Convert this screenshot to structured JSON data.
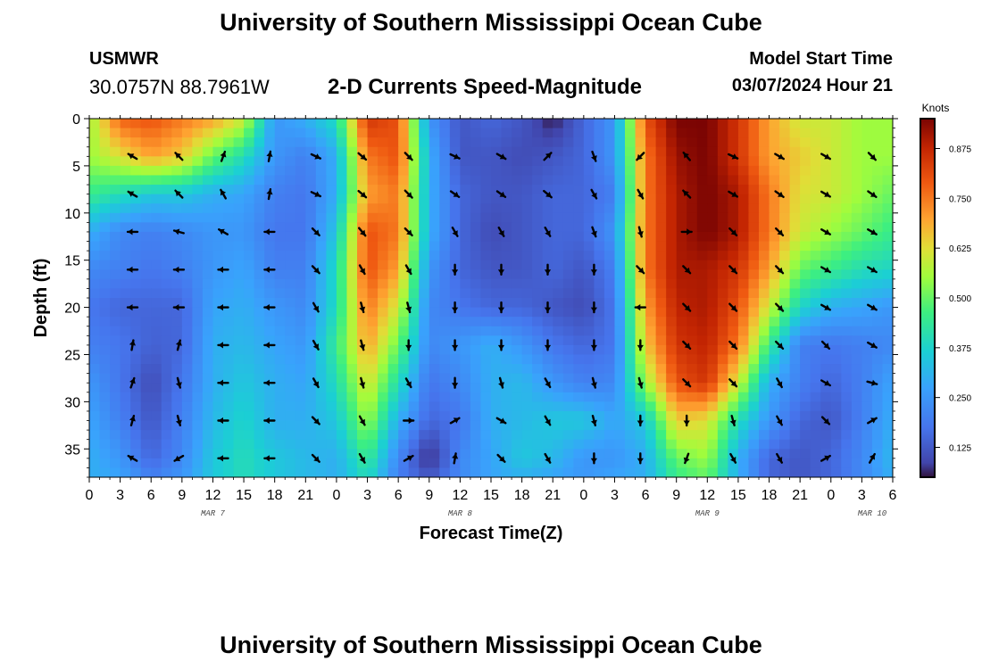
{
  "header": {
    "title": "University of Southern Mississippi Ocean Cube",
    "station_id": "USMWR",
    "coordinates": "30.0757N  88.7961W",
    "subtitle": "2-D Currents Speed-Magnitude",
    "model_start_label": "Model Start Time",
    "model_start_value": "03/07/2024 Hour 21"
  },
  "footer": {
    "title": "University of Southern Mississippi Ocean Cube"
  },
  "chart_data": {
    "type": "heatmap",
    "title": "2-D Currents Speed-Magnitude",
    "xlabel": "Forecast Time(Z)",
    "ylabel": "Depth (ft)",
    "x_hours_range": [
      0,
      78
    ],
    "x_tick_step_hours": 3,
    "x_tick_labels": [
      "0",
      "3",
      "6",
      "9",
      "12",
      "15",
      "18",
      "21",
      "0",
      "3",
      "6",
      "9",
      "12",
      "15",
      "18",
      "21",
      "0",
      "3",
      "6",
      "9",
      "12",
      "15",
      "18",
      "21",
      "0",
      "3",
      "6"
    ],
    "day_labels": [
      {
        "label": "MAR 7",
        "hour": 12
      },
      {
        "label": "MAR 8",
        "hour": 36
      },
      {
        "label": "MAR 9",
        "hour": 60
      },
      {
        "label": "MAR 10",
        "hour": 76
      }
    ],
    "ylim": [
      0,
      38
    ],
    "y_ticks": [
      0,
      5,
      10,
      15,
      20,
      25,
      30,
      35
    ],
    "colorbar": {
      "label": "Knots",
      "range": [
        0.05,
        0.95
      ],
      "ticks": [
        "0.125",
        "0.250",
        "0.375",
        "0.500",
        "0.625",
        "0.750",
        "0.875"
      ],
      "tick_values": [
        0.125,
        0.25,
        0.375,
        0.5,
        0.625,
        0.75,
        0.875
      ]
    },
    "speed_grid": {
      "depths_ft": [
        0,
        4,
        8,
        12,
        16,
        20,
        24,
        28,
        32,
        36,
        38
      ],
      "hours": [
        0,
        3,
        6,
        9,
        12,
        15,
        18,
        21,
        24,
        27,
        30,
        33,
        36,
        39,
        42,
        45,
        48,
        51,
        54,
        57,
        60,
        63,
        66,
        69,
        72,
        75,
        78
      ],
      "values": [
        [
          0.55,
          0.78,
          0.8,
          0.75,
          0.7,
          0.6,
          0.25,
          0.3,
          0.4,
          0.85,
          0.8,
          0.25,
          0.12,
          0.15,
          0.12,
          0.05,
          0.15,
          0.25,
          0.8,
          0.95,
          0.95,
          0.85,
          0.7,
          0.6,
          0.6,
          0.55,
          0.55
        ],
        [
          0.55,
          0.62,
          0.7,
          0.65,
          0.5,
          0.4,
          0.25,
          0.2,
          0.3,
          0.75,
          0.8,
          0.3,
          0.12,
          0.12,
          0.1,
          0.12,
          0.15,
          0.25,
          0.75,
          0.92,
          0.95,
          0.85,
          0.7,
          0.65,
          0.6,
          0.55,
          0.55
        ],
        [
          0.45,
          0.4,
          0.35,
          0.35,
          0.3,
          0.28,
          0.2,
          0.18,
          0.3,
          0.7,
          0.75,
          0.3,
          0.15,
          0.12,
          0.12,
          0.15,
          0.15,
          0.2,
          0.75,
          0.9,
          0.95,
          0.9,
          0.75,
          0.62,
          0.6,
          0.55,
          0.5
        ],
        [
          0.3,
          0.22,
          0.2,
          0.22,
          0.25,
          0.25,
          0.18,
          0.18,
          0.35,
          0.8,
          0.75,
          0.3,
          0.15,
          0.1,
          0.12,
          0.15,
          0.15,
          0.25,
          0.75,
          0.9,
          0.95,
          0.9,
          0.75,
          0.6,
          0.55,
          0.5,
          0.45
        ],
        [
          0.22,
          0.2,
          0.18,
          0.2,
          0.25,
          0.28,
          0.2,
          0.2,
          0.4,
          0.8,
          0.7,
          0.25,
          0.15,
          0.12,
          0.12,
          0.15,
          0.12,
          0.2,
          0.75,
          0.9,
          0.9,
          0.85,
          0.7,
          0.5,
          0.45,
          0.4,
          0.38
        ],
        [
          0.18,
          0.15,
          0.15,
          0.15,
          0.28,
          0.3,
          0.25,
          0.22,
          0.4,
          0.75,
          0.6,
          0.22,
          0.18,
          0.15,
          0.15,
          0.12,
          0.1,
          0.18,
          0.7,
          0.88,
          0.9,
          0.8,
          0.6,
          0.38,
          0.3,
          0.28,
          0.25
        ],
        [
          0.2,
          0.18,
          0.14,
          0.15,
          0.3,
          0.32,
          0.28,
          0.25,
          0.45,
          0.7,
          0.5,
          0.22,
          0.25,
          0.3,
          0.25,
          0.18,
          0.15,
          0.18,
          0.65,
          0.85,
          0.88,
          0.75,
          0.45,
          0.2,
          0.18,
          0.2,
          0.22
        ],
        [
          0.25,
          0.18,
          0.1,
          0.18,
          0.3,
          0.35,
          0.3,
          0.28,
          0.4,
          0.62,
          0.4,
          0.18,
          0.22,
          0.3,
          0.32,
          0.25,
          0.2,
          0.22,
          0.55,
          0.8,
          0.85,
          0.6,
          0.3,
          0.2,
          0.15,
          0.2,
          0.28
        ],
        [
          0.28,
          0.2,
          0.12,
          0.2,
          0.32,
          0.38,
          0.3,
          0.3,
          0.35,
          0.55,
          0.3,
          0.15,
          0.18,
          0.3,
          0.32,
          0.35,
          0.35,
          0.28,
          0.35,
          0.65,
          0.62,
          0.4,
          0.25,
          0.15,
          0.12,
          0.2,
          0.3
        ],
        [
          0.3,
          0.25,
          0.15,
          0.22,
          0.35,
          0.4,
          0.35,
          0.32,
          0.3,
          0.45,
          0.22,
          0.05,
          0.22,
          0.28,
          0.35,
          0.32,
          0.25,
          0.25,
          0.3,
          0.5,
          0.55,
          0.3,
          0.15,
          0.12,
          0.15,
          0.22,
          0.32
        ],
        [
          0.3,
          0.28,
          0.2,
          0.25,
          0.35,
          0.4,
          0.35,
          0.32,
          0.3,
          0.4,
          0.2,
          0.12,
          0.22,
          0.28,
          0.3,
          0.28,
          0.25,
          0.28,
          0.3,
          0.45,
          0.5,
          0.3,
          0.15,
          0.12,
          0.15,
          0.22,
          0.3
        ]
      ]
    },
    "vector_depths_ft": [
      4,
      8,
      12,
      16,
      20,
      24,
      28,
      32,
      36
    ],
    "vector_hours": [
      4.2,
      8.7,
      13,
      17.5,
      22,
      26.5,
      31,
      35.5,
      40,
      44.5,
      49,
      53.5,
      58,
      62.5,
      67,
      71.5,
      76
    ],
    "vector_directions_deg": [
      [
        300,
        315,
        20,
        10,
        115,
        130,
        135,
        115,
        120,
        45,
        160,
        225,
        320,
        115,
        120,
        120,
        135
      ],
      [
        300,
        315,
        330,
        10,
        115,
        130,
        135,
        125,
        125,
        130,
        150,
        150,
        315,
        120,
        125,
        120,
        125
      ],
      [
        270,
        285,
        300,
        270,
        135,
        140,
        135,
        150,
        150,
        150,
        160,
        165,
        90,
        135,
        135,
        120,
        120
      ],
      [
        270,
        270,
        270,
        270,
        135,
        150,
        150,
        180,
        180,
        180,
        180,
        135,
        135,
        135,
        135,
        120,
        120
      ],
      [
        270,
        270,
        270,
        270,
        150,
        165,
        165,
        180,
        180,
        180,
        180,
        270,
        135,
        135,
        135,
        120,
        120
      ],
      [
        10,
        15,
        270,
        270,
        150,
        165,
        180,
        180,
        180,
        180,
        180,
        180,
        135,
        135,
        135,
        135,
        120
      ],
      [
        20,
        165,
        270,
        270,
        150,
        165,
        150,
        180,
        165,
        150,
        165,
        165,
        135,
        135,
        150,
        120,
        105
      ],
      [
        15,
        165,
        270,
        270,
        135,
        150,
        90,
        60,
        120,
        150,
        165,
        180,
        180,
        165,
        150,
        135,
        60
      ],
      [
        300,
        240,
        270,
        270,
        135,
        150,
        60,
        10,
        135,
        150,
        180,
        180,
        200,
        150,
        150,
        60,
        30
      ]
    ]
  }
}
